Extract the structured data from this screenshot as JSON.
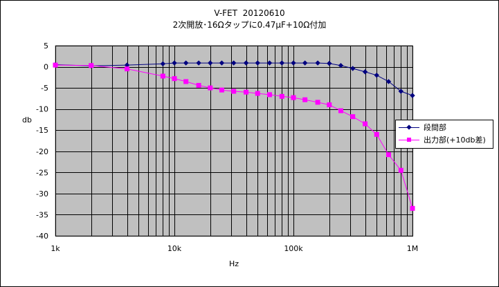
{
  "title": {
    "line1": "V-FET  20120610",
    "line2": "2次開放･16Ωタップに0.47μF+10Ω付加"
  },
  "colors": {
    "plot_bg": "#c0c0c0",
    "grid": "#000000",
    "series1": "#000080",
    "series2": "#ff00ff"
  },
  "chart_data": {
    "type": "line",
    "xscale": "log",
    "xlim": [
      1000,
      1000000
    ],
    "ylim": [
      -40,
      5
    ],
    "xlabel": "Hz",
    "ylabel": "db",
    "grid": true,
    "legend": "right",
    "xticks": [
      {
        "value": 1000,
        "label": "1k"
      },
      {
        "value": 10000,
        "label": "10k"
      },
      {
        "value": 100000,
        "label": "100k"
      },
      {
        "value": 1000000,
        "label": "1M"
      }
    ],
    "yticks": [
      5,
      0,
      -5,
      -10,
      -15,
      -20,
      -25,
      -30,
      -35,
      -40
    ],
    "series": [
      {
        "name": "段間部",
        "marker": "diamond",
        "x": [
          1000,
          2000,
          4000,
          8000,
          10000,
          12500,
          16000,
          20000,
          25000,
          31500,
          40000,
          50000,
          63000,
          80000,
          100000,
          125000,
          160000,
          200000,
          250000,
          315000,
          400000,
          500000,
          630000,
          800000,
          1000000
        ],
        "y": [
          0.5,
          0.2,
          0.4,
          0.7,
          0.9,
          0.9,
          0.9,
          0.9,
          0.9,
          0.9,
          0.9,
          0.9,
          0.9,
          0.9,
          0.9,
          0.9,
          0.9,
          0.8,
          0.3,
          -0.4,
          -1.2,
          -2.0,
          -3.5,
          -5.8,
          -6.8
        ]
      },
      {
        "name": "出力部(+10db差)",
        "marker": "square",
        "x": [
          1000,
          2000,
          4000,
          8000,
          10000,
          12500,
          16000,
          20000,
          25000,
          31500,
          40000,
          50000,
          63000,
          80000,
          100000,
          125000,
          160000,
          200000,
          250000,
          315000,
          400000,
          500000,
          630000,
          800000,
          1000000
        ],
        "y": [
          0.4,
          0.3,
          -0.5,
          -2.2,
          -2.8,
          -3.5,
          -4.4,
          -5.0,
          -5.5,
          -5.8,
          -6.0,
          -6.3,
          -6.6,
          -7.0,
          -7.3,
          -7.8,
          -8.4,
          -9.0,
          -10.4,
          -11.8,
          -13.5,
          -16.0,
          -20.8,
          -24.5,
          -33.5
        ]
      }
    ]
  }
}
